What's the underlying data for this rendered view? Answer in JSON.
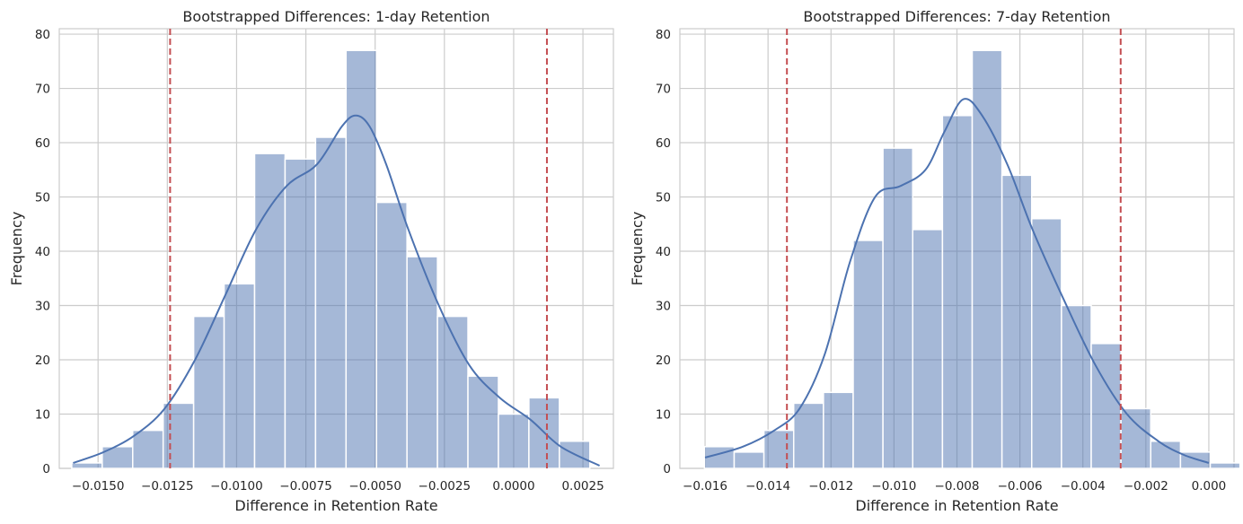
{
  "chart_data": [
    {
      "type": "bar",
      "title": "Bootstrapped Differences: 1-day Retention",
      "xlabel": "Difference in Retention Rate",
      "ylabel": "Frequency",
      "xlim": [
        -0.0164,
        0.0036
      ],
      "ylim": [
        0,
        81
      ],
      "x_ticks": [
        -0.015,
        -0.0125,
        -0.01,
        -0.0075,
        -0.005,
        -0.0025,
        0.0,
        0.0025
      ],
      "x_tick_labels": [
        "−0.0150",
        "−0.0125",
        "−0.0100",
        "−0.0075",
        "−0.0050",
        "−0.0025",
        "0.0000",
        "0.0025"
      ],
      "y_ticks": [
        0,
        10,
        20,
        30,
        40,
        50,
        60,
        70,
        80
      ],
      "y_tick_labels": [
        "0",
        "10",
        "20",
        "30",
        "40",
        "50",
        "60",
        "70",
        "80"
      ],
      "bin_start": -0.01595,
      "bin_width": 0.0011,
      "counts": [
        1,
        4,
        7,
        12,
        28,
        34,
        58,
        57,
        61,
        77,
        49,
        39,
        28,
        17,
        10,
        13,
        5
      ],
      "kde": {
        "x": [
          -0.0159,
          -0.0148,
          -0.0137,
          -0.0126,
          -0.0115,
          -0.0104,
          -0.0093,
          -0.0082,
          -0.0071,
          -0.0062,
          -0.0057,
          -0.0052,
          -0.0046,
          -0.0038,
          -0.0027,
          -0.0016,
          -0.0005,
          0.0006,
          0.0017,
          0.0031
        ],
        "y": [
          1,
          3,
          6,
          11,
          20,
          32,
          44,
          52,
          56,
          63,
          65,
          63,
          56,
          44,
          30,
          19,
          13,
          9,
          4,
          0.5
        ]
      },
      "ci_lines": [
        -0.0124,
        0.0012
      ],
      "grid": true,
      "colors": {
        "bars": "#4c72b0",
        "kde": "#4c72b0",
        "ci": "#c44e52",
        "grid": "#cccccc"
      }
    },
    {
      "type": "bar",
      "title": "Bootstrapped Differences: 7-day Retention",
      "xlabel": "Difference in Retention Rate",
      "ylabel": "Frequency",
      "xlim": [
        -0.0168,
        0.0008
      ],
      "ylim": [
        0,
        81
      ],
      "x_ticks": [
        -0.016,
        -0.014,
        -0.012,
        -0.01,
        -0.008,
        -0.006,
        -0.004,
        -0.002,
        0.0
      ],
      "x_tick_labels": [
        "−0.016",
        "−0.014",
        "−0.012",
        "−0.010",
        "−0.008",
        "−0.006",
        "−0.004",
        "−0.002",
        "0.000"
      ],
      "y_ticks": [
        0,
        10,
        20,
        30,
        40,
        50,
        60,
        70,
        80
      ],
      "y_tick_labels": [
        "0",
        "10",
        "20",
        "30",
        "40",
        "50",
        "60",
        "70",
        "80"
      ],
      "bin_start": -0.01602,
      "bin_width": 0.000945,
      "counts": [
        4,
        3,
        7,
        12,
        14,
        42,
        59,
        44,
        65,
        77,
        54,
        46,
        30,
        23,
        11,
        5,
        3,
        1
      ],
      "kde": {
        "x": [
          -0.016,
          -0.0148,
          -0.0138,
          -0.013,
          -0.0122,
          -0.0114,
          -0.0106,
          -0.0098,
          -0.009,
          -0.0084,
          -0.0078,
          -0.0072,
          -0.0064,
          -0.0056,
          -0.0046,
          -0.0036,
          -0.0026,
          -0.0016,
          -0.0008,
          0.0
        ],
        "y": [
          2,
          4,
          7,
          11,
          21,
          38,
          50,
          52,
          55,
          62,
          68,
          65,
          56,
          44,
          31,
          19,
          10,
          5,
          2.5,
          1
        ]
      },
      "ci_lines": [
        -0.0134,
        -0.0028
      ],
      "grid": true,
      "colors": {
        "bars": "#4c72b0",
        "kde": "#4c72b0",
        "ci": "#c44e52",
        "grid": "#cccccc"
      }
    }
  ]
}
